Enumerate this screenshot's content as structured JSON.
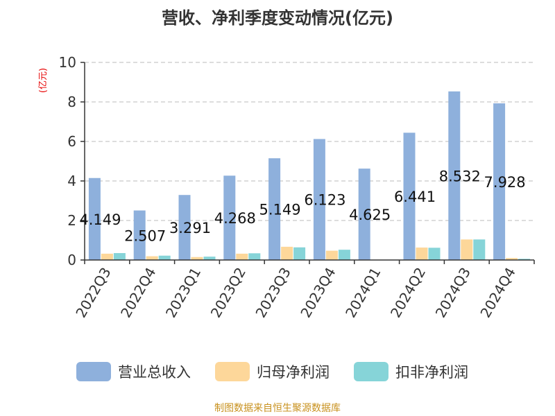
{
  "chart_data": {
    "type": "bar",
    "title": "营收、净利季度变动情况(亿元)",
    "ylabel": "(亿元)",
    "ylim": [
      0,
      10
    ],
    "yticks": [
      0,
      2,
      4,
      6,
      8,
      10
    ],
    "grid": true,
    "legend_position": "bottom",
    "categories": [
      "2022Q3",
      "2022Q4",
      "2023Q1",
      "2023Q2",
      "2023Q3",
      "2023Q4",
      "2024Q1",
      "2024Q2",
      "2024Q3",
      "2024Q4"
    ],
    "series": [
      {
        "name": "营业总收入",
        "color": "#8eb0dc",
        "values": [
          4.149,
          2.507,
          3.291,
          4.268,
          5.149,
          6.123,
          4.625,
          6.441,
          8.532,
          7.928
        ],
        "labels": [
          "4.149",
          "2.507",
          "3.291",
          "4.268",
          "5.149",
          "6.123",
          "4.625",
          "6.441",
          "8.532",
          "7.928"
        ]
      },
      {
        "name": "归母净利润",
        "color": "#fdd79a",
        "values": [
          0.32,
          0.19,
          0.15,
          0.32,
          0.67,
          0.47,
          0.0,
          0.63,
          1.04,
          0.1
        ]
      },
      {
        "name": "扣非净利润",
        "color": "#86d4d8",
        "values": [
          0.35,
          0.22,
          0.17,
          0.34,
          0.64,
          0.52,
          0.0,
          0.62,
          1.04,
          0.06
        ]
      }
    ]
  },
  "footer": {
    "source": "制图数据来自恒生聚源数据库"
  },
  "colors": {
    "axis": "#333333",
    "grid": "#bbbbbb",
    "title": "#333333",
    "ylabel": "#e60000",
    "source": "#c8911e"
  }
}
